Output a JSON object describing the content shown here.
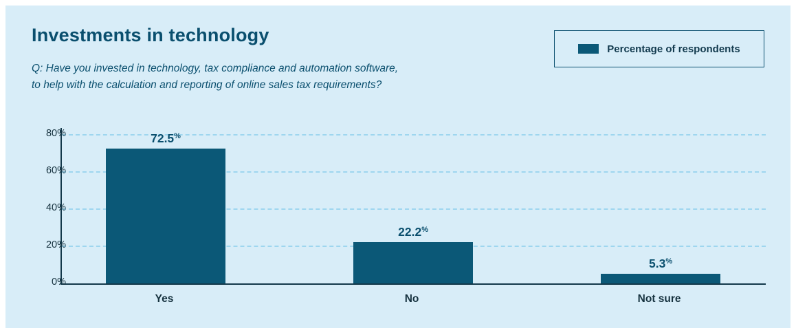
{
  "header": {
    "title": "Investments in technology",
    "question_line1": "Q: Have you invested in technology, tax compliance and automation software,",
    "question_line2": "to help with the calculation and reporting of online sales tax requirements?"
  },
  "legend": {
    "label": "Percentage of respondents"
  },
  "colors": {
    "panel_background": "#d8edf8",
    "bar": "#0b5877",
    "title_text": "#0a4f6e",
    "axis_line": "#13384a",
    "gridline": "#9ed6ef"
  },
  "chart_data": {
    "type": "bar",
    "title": "Investments in technology",
    "categories": [
      "Yes",
      "No",
      "Not sure"
    ],
    "values": [
      72.5,
      22.2,
      5.3
    ],
    "value_labels": [
      "72.5",
      "22.2",
      "5.3"
    ],
    "unit": "%",
    "series_name": "Percentage of respondents",
    "xlabel": "",
    "ylabel": "",
    "y_ticks": [
      "0%",
      "20%",
      "40%",
      "60%",
      "80%"
    ],
    "y_tick_values": [
      0,
      20,
      40,
      60,
      80
    ],
    "ylim": [
      0,
      83.7
    ],
    "grid": "dashed horizontal lines",
    "legend_position": "top-right"
  }
}
